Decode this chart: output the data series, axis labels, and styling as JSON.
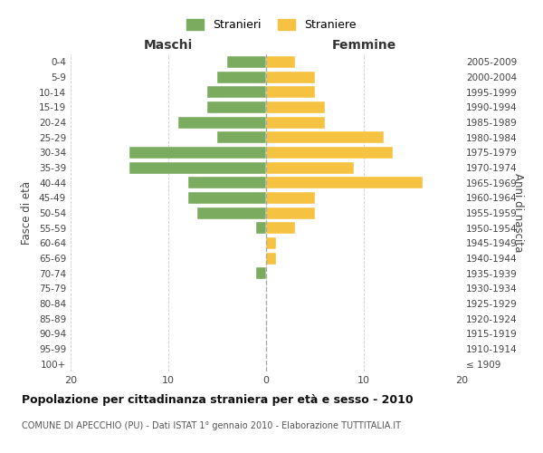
{
  "age_groups": [
    "100+",
    "95-99",
    "90-94",
    "85-89",
    "80-84",
    "75-79",
    "70-74",
    "65-69",
    "60-64",
    "55-59",
    "50-54",
    "45-49",
    "40-44",
    "35-39",
    "30-34",
    "25-29",
    "20-24",
    "15-19",
    "10-14",
    "5-9",
    "0-4"
  ],
  "birth_years": [
    "≤ 1909",
    "1910-1914",
    "1915-1919",
    "1920-1924",
    "1925-1929",
    "1930-1934",
    "1935-1939",
    "1940-1944",
    "1945-1949",
    "1950-1954",
    "1955-1959",
    "1960-1964",
    "1965-1969",
    "1970-1974",
    "1975-1979",
    "1980-1984",
    "1985-1989",
    "1990-1994",
    "1995-1999",
    "2000-2004",
    "2005-2009"
  ],
  "maschi": [
    0,
    0,
    0,
    0,
    0,
    0,
    1,
    0,
    0,
    1,
    7,
    8,
    8,
    14,
    14,
    5,
    9,
    6,
    6,
    5,
    4
  ],
  "femmine": [
    0,
    0,
    0,
    0,
    0,
    0,
    0,
    1,
    1,
    3,
    5,
    5,
    16,
    9,
    13,
    12,
    6,
    6,
    5,
    5,
    3
  ],
  "color_maschi": "#7aab5e",
  "color_femmine": "#f5c242",
  "title": "Popolazione per cittadinanza straniera per età e sesso - 2010",
  "subtitle": "COMUNE DI APECCHIO (PU) - Dati ISTAT 1° gennaio 2010 - Elaborazione TUTTITALIA.IT",
  "legend_stranieri": "Stranieri",
  "legend_straniere": "Straniere",
  "xlabel_left": "Maschi",
  "xlabel_right": "Femmine",
  "ylabel_left": "Fasce di età",
  "ylabel_right": "Anni di nascita",
  "xlim": 20,
  "background_color": "#ffffff",
  "grid_color": "#cccccc"
}
